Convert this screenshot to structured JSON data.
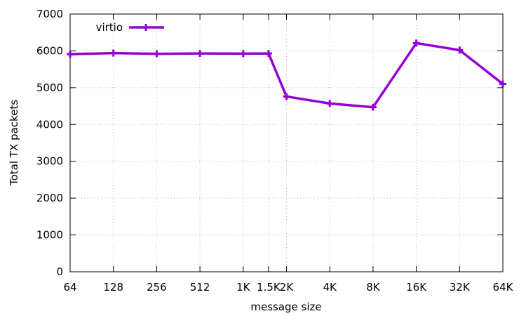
{
  "chart_data": {
    "type": "line",
    "xlabel": "message size",
    "ylabel": "Total TX packets",
    "ylim": [
      0,
      7000
    ],
    "yticks": [
      0,
      1000,
      2000,
      3000,
      4000,
      5000,
      6000,
      7000
    ],
    "x_scale": "log2",
    "categories": [
      "64",
      "128",
      "256",
      "512",
      "1K",
      "1.5K",
      "2K",
      "4K",
      "8K",
      "16K",
      "32K",
      "64K"
    ],
    "x": [
      64,
      128,
      256,
      512,
      1024,
      1536,
      2048,
      4096,
      8192,
      16384,
      32768,
      65536
    ],
    "grid": true,
    "legend_position": "top-left",
    "series": [
      {
        "name": "virtio",
        "color": "#9400d3",
        "values": [
          5910,
          5940,
          5920,
          5930,
          5925,
          5930,
          4760,
          4570,
          4470,
          6210,
          6020,
          5100
        ]
      }
    ]
  }
}
